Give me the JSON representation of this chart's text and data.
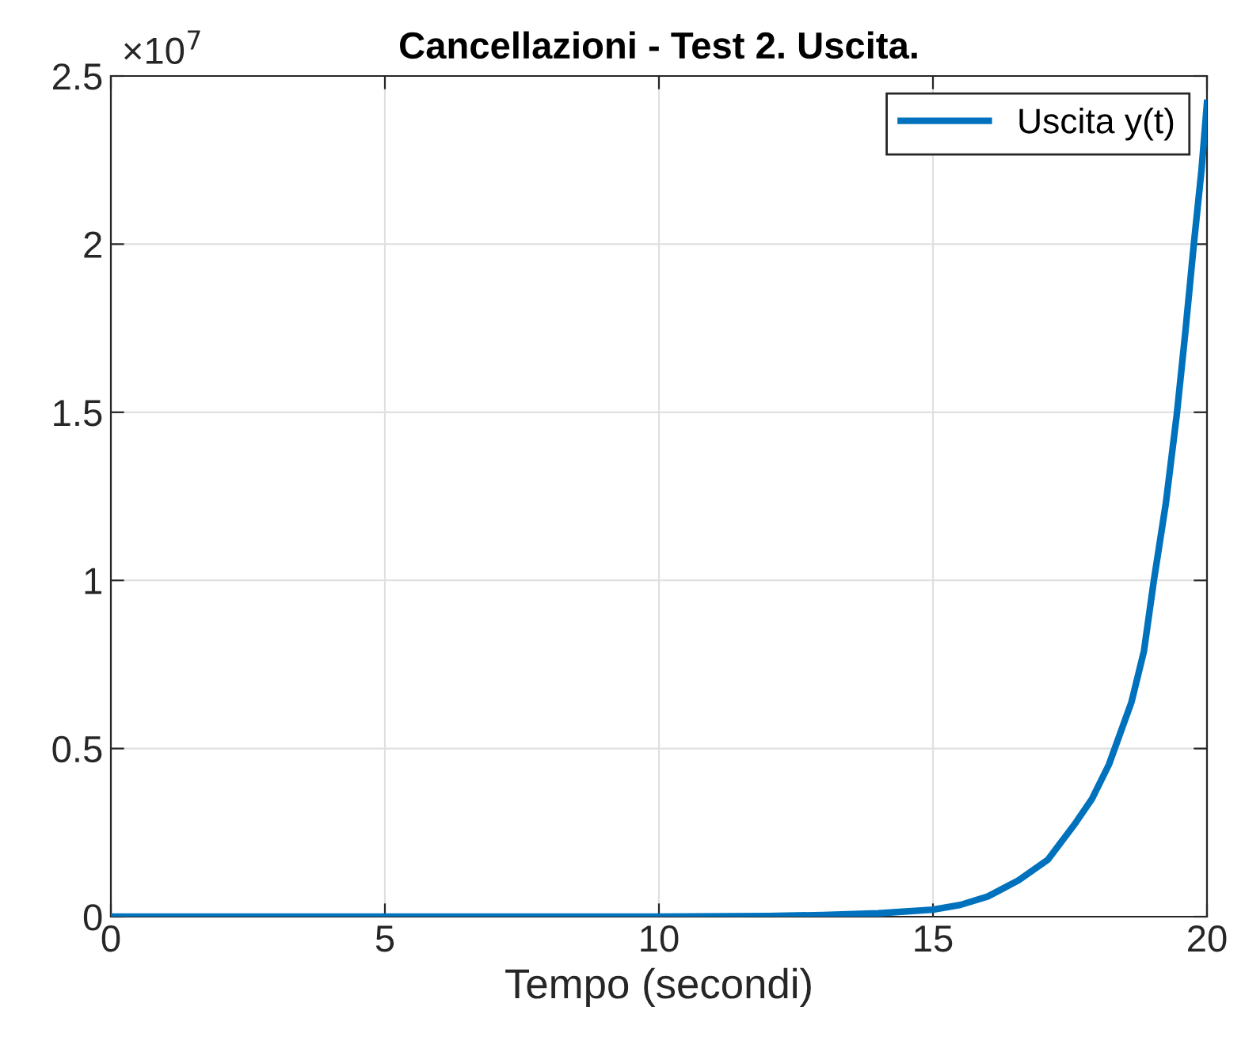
{
  "chart_data": {
    "type": "line",
    "title": "Cancellazioni - Test 2. Uscita.",
    "xlabel": "Tempo (secondi)",
    "annotations": [
      "×10$^{7}$"
    ],
    "x": [
      0,
      5,
      10,
      12,
      13,
      14,
      15,
      15.5,
      16,
      16.56,
      17.1,
      17.59,
      17.9,
      18.21,
      18.62,
      18.85,
      19.03,
      19.25,
      19.45,
      19.6,
      19.76,
      19.9,
      20
    ],
    "series": [
      {
        "name": "Uscita y(t)",
        "color": "#0072bd",
        "values": [
          0,
          0,
          0,
          0.002,
          0.005,
          0.01,
          0.021,
          0.035,
          0.06,
          0.108,
          0.17,
          0.276,
          0.35,
          0.452,
          0.637,
          0.79,
          0.999,
          1.23,
          1.495,
          1.73,
          2.0,
          2.22,
          2.42
        ]
      }
    ],
    "xlim": [
      0,
      20
    ],
    "xticks": [
      0,
      5,
      10,
      15,
      20
    ],
    "ylim": [
      0,
      2.5
    ],
    "yticks": [
      0,
      0.5,
      1,
      1.5,
      2,
      2.5
    ],
    "grid": true,
    "legend": "top right",
    "marker": "none",
    "line_style": "solid"
  }
}
